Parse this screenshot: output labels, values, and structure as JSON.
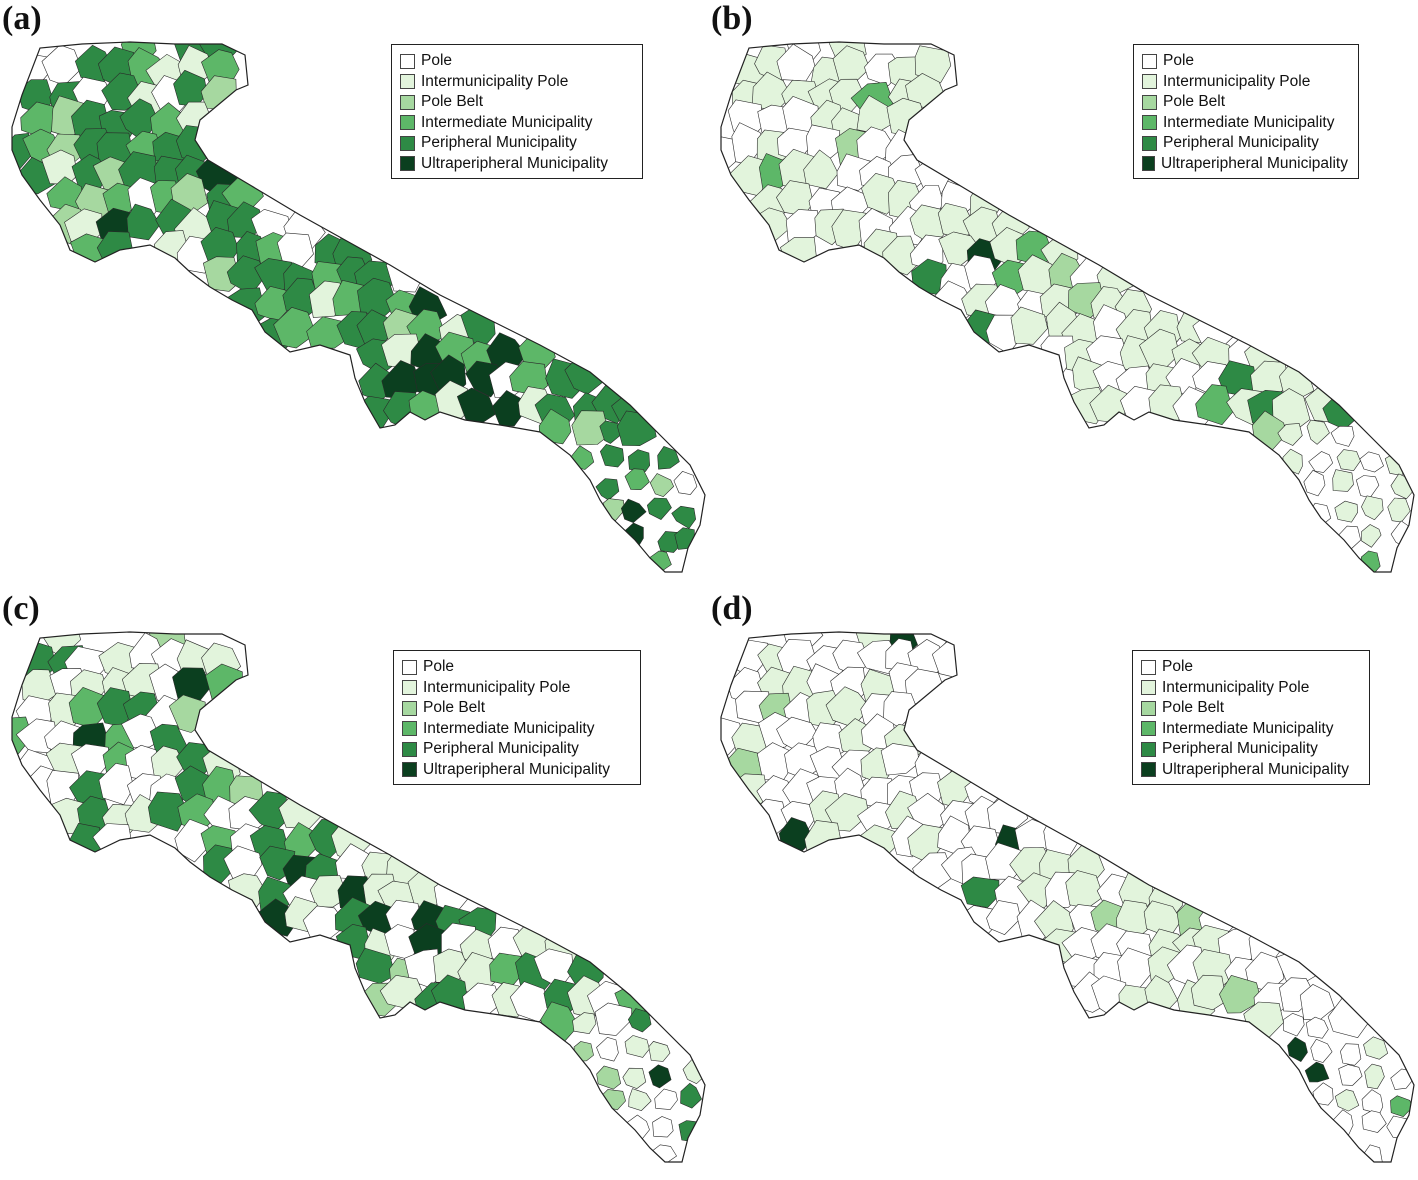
{
  "legend": {
    "categories": [
      {
        "label": "Pole",
        "color": "#ffffff"
      },
      {
        "label": "Intermunicipality Pole",
        "color": "#e2f4dc"
      },
      {
        "label": "Pole Belt",
        "color": "#a6d8a0"
      },
      {
        "label": "Intermediate Municipality",
        "color": "#5db768"
      },
      {
        "label": "Peripheral Municipality",
        "color": "#2e8a45"
      },
      {
        "label": "Ultraperipheral Municipality",
        "color": "#0b3f1f"
      }
    ]
  },
  "panels": [
    {
      "label": "(a)",
      "dominant_class": 4
    },
    {
      "label": "(b)",
      "dominant_class": 2
    },
    {
      "label": "(c)",
      "dominant_class": 3
    },
    {
      "label": "(d)",
      "dominant_class": 1
    }
  ]
}
